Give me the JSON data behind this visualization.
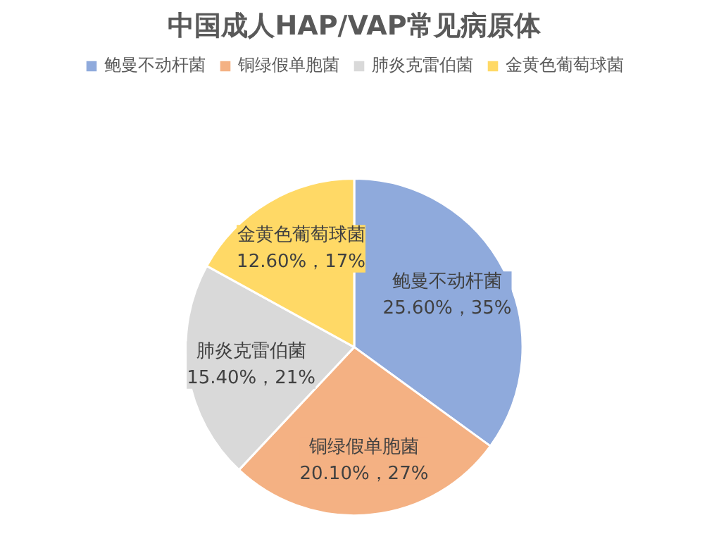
{
  "chart_data": {
    "type": "pie",
    "title": "中国成人HAP/VAP常见病原体",
    "categories": [
      "鲍曼不动杆菌",
      "铜绿假单胞菌",
      "肺炎克雷伯菌",
      "金黄色葡萄球菌"
    ],
    "values": [
      35,
      27,
      21,
      17
    ],
    "value_labels": [
      "25.60%，35%",
      "20.10%，27%",
      "15.40%，21%",
      "12.60%，17%"
    ],
    "colors": [
      "#8faadc",
      "#f4b183",
      "#d9d9d9",
      "#ffd966"
    ],
    "legend": "top"
  }
}
